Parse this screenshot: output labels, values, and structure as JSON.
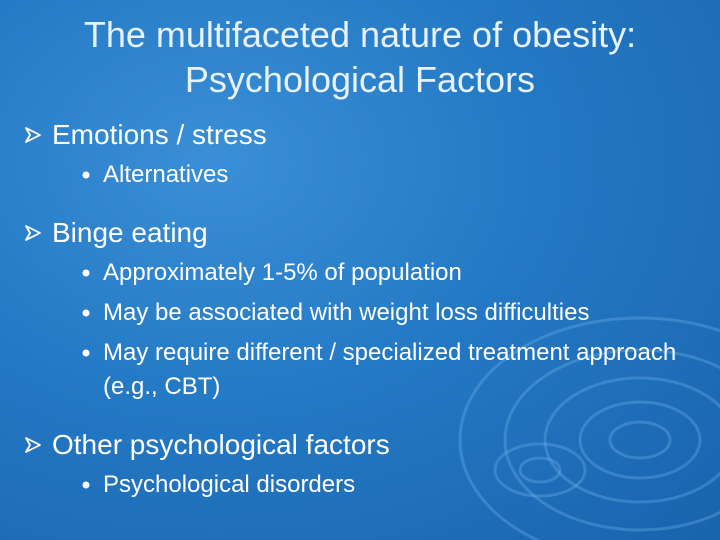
{
  "slide": {
    "title": [
      "The multifaceted nature of obesity:",
      "Psychological Factors"
    ],
    "sections": [
      {
        "text": "Emotions / stress",
        "items": [
          "Alternatives"
        ]
      },
      {
        "text": "Binge eating",
        "items": [
          "Approximately 1-5% of population",
          "May be associated with weight loss difficulties",
          "May require different / specialized treatment approach (e.g., CBT)"
        ]
      },
      {
        "text": "Other psychological factors",
        "items": [
          "Psychological disorders"
        ]
      }
    ]
  }
}
